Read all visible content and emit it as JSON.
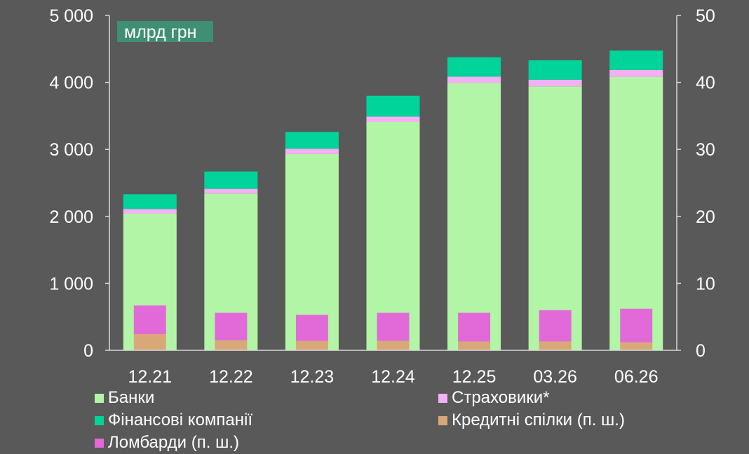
{
  "chart_data": {
    "type": "bar",
    "stacked": true,
    "unit_label": "млрд грн",
    "categories": [
      "12.21",
      "12.22",
      "12.23",
      "12.24",
      "12.25",
      "03.26",
      "06.26"
    ],
    "left_axis": {
      "range": [
        0,
        5000
      ],
      "ticks": [
        "0",
        "1 000",
        "2 000",
        "3 000",
        "4 000",
        "5 000"
      ]
    },
    "right_axis": {
      "range": [
        0,
        50
      ],
      "ticks": [
        "0",
        "10",
        "20",
        "30",
        "40",
        "50"
      ]
    },
    "primary_series": [
      {
        "name": "Банки",
        "color": "#b3f5a6",
        "values": [
          2040,
          2340,
          2930,
          3410,
          3990,
          3940,
          4080
        ]
      },
      {
        "name": "Страховики*",
        "color": "#f3b1f3",
        "values": [
          70,
          70,
          80,
          80,
          95,
          100,
          105
        ]
      },
      {
        "name": "Фінансові компанії",
        "color": "#00d49a",
        "values": [
          220,
          260,
          250,
          310,
          290,
          290,
          290
        ]
      }
    ],
    "secondary_series": [
      {
        "name": "Кредитні спілки (п. ш.)",
        "color": "#d9a878",
        "values": [
          2.4,
          1.5,
          1.4,
          1.4,
          1.3,
          1.3,
          1.2
        ]
      },
      {
        "name": "Ломбарди (п. ш.)",
        "color": "#e26ad8",
        "values": [
          4.3,
          4.1,
          3.9,
          4.2,
          4.3,
          4.7,
          5.0
        ]
      }
    ],
    "grid": false,
    "legend_position": "bottom"
  },
  "legend": [
    {
      "label": "Банки",
      "color": "#b3f5a6"
    },
    {
      "label": "Страховики*",
      "color": "#f3b1f3"
    },
    {
      "label": "Фінансові компанії",
      "color": "#00d49a"
    },
    {
      "label": "Кредитні спілки (п. ш.)",
      "color": "#d9a878"
    },
    {
      "label": "Ломбарди (п. ш.)",
      "color": "#e26ad8"
    }
  ]
}
